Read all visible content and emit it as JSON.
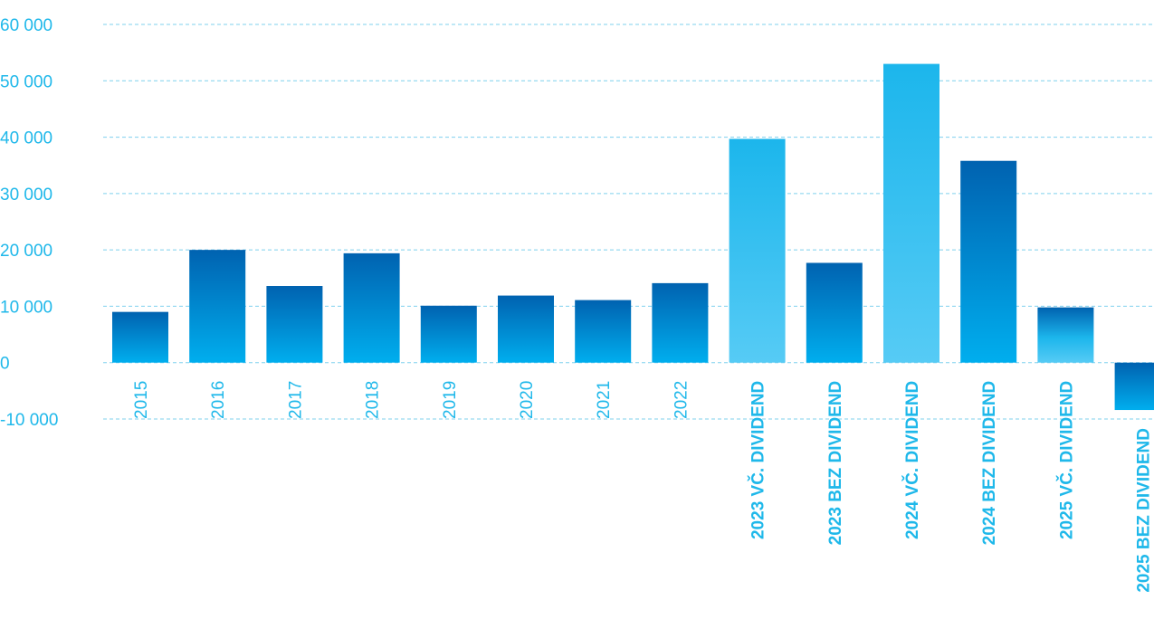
{
  "chart_data": {
    "type": "bar",
    "title": "",
    "xlabel": "",
    "ylabel": "",
    "ylim": [
      -10000,
      60000
    ],
    "yticks": [
      60000,
      50000,
      40000,
      30000,
      20000,
      10000,
      0,
      -10000
    ],
    "ytick_labels": [
      "60 000",
      "50 000",
      "40 000",
      "30 000",
      "20 000",
      "10 000",
      "0",
      "-10 000"
    ],
    "grid": true,
    "categories": [
      "2015",
      "2016",
      "2017",
      "2018",
      "2019",
      "2020",
      "2021",
      "2022",
      "2023 VČ. DIVIDEND",
      "2023 BEZ DIVIDEND",
      "2024 VČ. DIVIDEND",
      "2024 BEZ DIVIDEND",
      "2025 VČ. DIVIDEND",
      "2025 BEZ DIVIDEND"
    ],
    "bold_categories": [
      false,
      false,
      false,
      false,
      false,
      false,
      false,
      false,
      true,
      true,
      true,
      true,
      true,
      true
    ],
    "values": [
      9000,
      20000,
      13600,
      19400,
      10100,
      11900,
      11100,
      14100,
      39700,
      17700,
      53000,
      35800,
      9800,
      -8400
    ],
    "bar_styles": [
      "dark",
      "dark",
      "dark",
      "dark",
      "dark",
      "dark",
      "dark",
      "dark",
      "light",
      "dark",
      "light",
      "dark",
      "light-top",
      "dark"
    ],
    "colors": {
      "dark_top": "#0062b0",
      "dark_bottom": "#00aeee",
      "light_top": "#1cb6ec",
      "light_bottom": "#56cbf5",
      "axis_text": "#1fb8ea",
      "grid": "#7fd0ee"
    }
  }
}
